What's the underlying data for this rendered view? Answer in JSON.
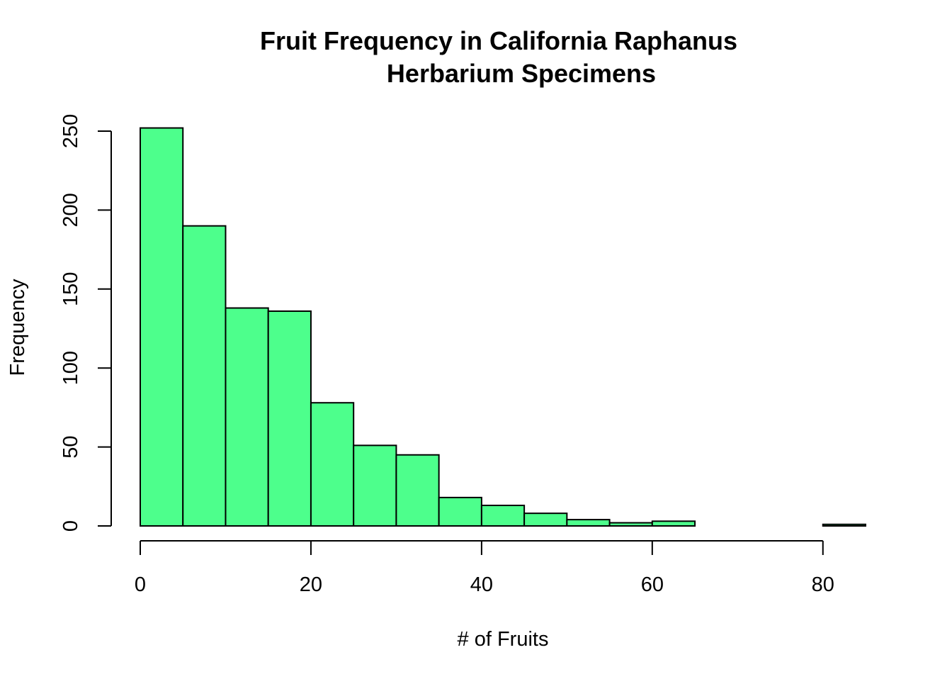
{
  "chart_data": {
    "type": "bar",
    "title_lines": [
      "Fruit Frequency in California Raphanus",
      "Herbarium Specimens"
    ],
    "xlabel": "# of Fruits",
    "ylabel": "Frequency",
    "bin_edges": [
      0,
      5,
      10,
      15,
      20,
      25,
      30,
      35,
      40,
      45,
      50,
      55,
      60,
      65,
      70,
      75,
      80,
      85
    ],
    "values": [
      252,
      190,
      138,
      136,
      78,
      51,
      45,
      18,
      13,
      8,
      4,
      2,
      3,
      0,
      0,
      0,
      1
    ],
    "xlim": [
      0,
      85
    ],
    "ylim": [
      0,
      250
    ],
    "x_ticks": [
      0,
      20,
      40,
      60,
      80
    ],
    "x_tick_labels": [
      "0",
      "20",
      "40",
      "60",
      "80"
    ],
    "y_ticks": [
      0,
      50,
      100,
      150,
      200,
      250
    ],
    "y_tick_labels": [
      "0",
      "50",
      "100",
      "150",
      "200",
      "250"
    ],
    "bar_color": "#4DFF8C",
    "bar_edge_color": "#000000",
    "grid": false,
    "legend": false
  }
}
